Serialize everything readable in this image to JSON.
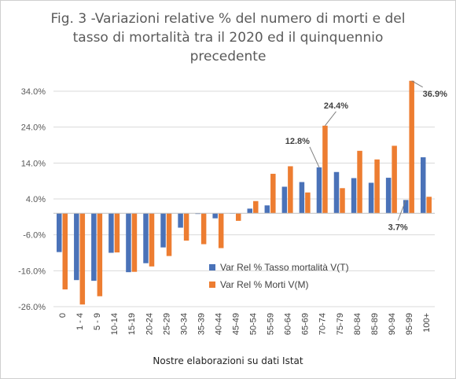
{
  "chart_data": {
    "type": "bar",
    "title": "Fig. 3 -Variazioni relative % del numero di morti e del tasso di mortalità tra il 2020 ed il quinquennio precedente",
    "title_lines": [
      "Fig. 3 -Variazioni relative % del numero di morti e del",
      "tasso di mortalità tra il 2020 ed il quinquennio",
      "precedente"
    ],
    "xlabel": "Nostre elaborazioni su dati Istat",
    "ylabel": "",
    "ylim": [
      -26,
      38
    ],
    "yticks": [
      34,
      24,
      14,
      4,
      -6,
      -16,
      -26
    ],
    "ytick_labels": [
      "34.0%",
      "24.0%",
      "14.0%",
      "4.0%",
      "-6.0%",
      "-16.0%",
      "-26.0%"
    ],
    "grid": true,
    "legend_position": "center-right",
    "categories": [
      "0",
      "1 - 4",
      "5 - 9",
      "10-14",
      "15-19",
      "20-24",
      "25-29",
      "30-34",
      "35-39",
      "40-44",
      "45-49",
      "50-54",
      "55-59",
      "60-64",
      "65-69",
      "70-74",
      "75-79",
      "80-84",
      "85-89",
      "90-94",
      "95-99",
      "100+"
    ],
    "series": [
      {
        "name": "Var Rel % Tasso mortalità V(T)",
        "color": "#4a72b8",
        "values": [
          -10.8,
          -18.6,
          -18.8,
          -11.0,
          -16.4,
          -13.9,
          -9.5,
          -4.0,
          -0.2,
          -1.4,
          0.0,
          1.3,
          2.2,
          7.4,
          8.7,
          12.8,
          11.5,
          9.8,
          8.5,
          9.9,
          3.7,
          15.6
        ]
      },
      {
        "name": "Var Rel % Morti V(M)",
        "color": "#ed7d31",
        "values": [
          -21.2,
          -25.4,
          -23.1,
          -10.9,
          -16.3,
          -14.8,
          -11.9,
          -7.6,
          -8.6,
          -9.7,
          -2.1,
          3.4,
          11.0,
          13.1,
          5.8,
          24.4,
          7.0,
          17.4,
          15.0,
          18.8,
          36.9,
          4.6
        ]
      }
    ],
    "annotations": [
      {
        "text": "12.8%",
        "series": 0,
        "category": "70-74"
      },
      {
        "text": "24.4%",
        "series": 1,
        "category": "70-74"
      },
      {
        "text": "3.7%",
        "series": 0,
        "category": "95-99"
      },
      {
        "text": "36.9%",
        "series": 1,
        "category": "95-99"
      }
    ]
  }
}
